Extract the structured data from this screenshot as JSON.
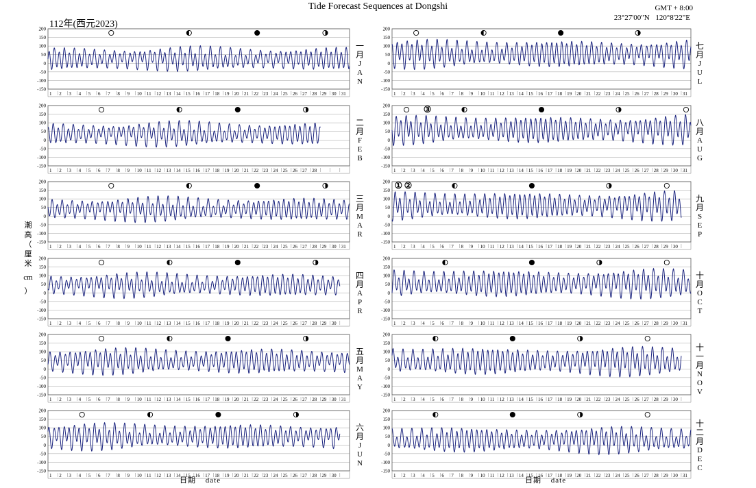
{
  "header": {
    "title": "Tide Forecast Sequences at Dongshi",
    "year_label": "112年(西元2023)",
    "gmt": "GMT + 8:00",
    "coords": "23°27'00\"N 120°8'22\"E"
  },
  "axis": {
    "ylabel_chars": [
      "潮",
      "高",
      "（",
      "厘",
      "米",
      "cm",
      "）"
    ],
    "xlabel": "日期 date"
  },
  "chart_data": {
    "type": "line",
    "y_unit": "cm",
    "ylim": [
      -150,
      200
    ],
    "yticks": [
      -150,
      -100,
      -50,
      0,
      50,
      100,
      150,
      200
    ],
    "grid": true,
    "x_unit": "day of month",
    "line_color": "#1a237e",
    "months": [
      {
        "label": "一月",
        "abbr": "JAN",
        "days": 31,
        "amp": [
          45,
          55
        ],
        "mean": 25,
        "phases": [
          {
            "type": "full",
            "day": 7
          },
          {
            "type": "last-quarter",
            "day": 15
          },
          {
            "type": "new",
            "day": 22
          },
          {
            "type": "first-quarter",
            "day": 29
          }
        ],
        "markers": []
      },
      {
        "label": "二月",
        "abbr": "FEB",
        "days": 28,
        "amp": [
          45,
          60
        ],
        "mean": 35,
        "phases": [
          {
            "type": "full",
            "day": 6
          },
          {
            "type": "last-quarter",
            "day": 14
          },
          {
            "type": "new",
            "day": 20
          },
          {
            "type": "first-quarter",
            "day": 27
          }
        ],
        "markers": []
      },
      {
        "label": "三月",
        "abbr": "MAR",
        "days": 31,
        "amp": [
          45,
          60
        ],
        "mean": 40,
        "phases": [
          {
            "type": "full",
            "day": 7
          },
          {
            "type": "last-quarter",
            "day": 15
          },
          {
            "type": "new",
            "day": 22
          },
          {
            "type": "first-quarter",
            "day": 29
          }
        ],
        "markers": []
      },
      {
        "label": "四月",
        "abbr": "APR",
        "days": 30,
        "amp": [
          45,
          60
        ],
        "mean": 45,
        "phases": [
          {
            "type": "full",
            "day": 6
          },
          {
            "type": "last-quarter",
            "day": 13
          },
          {
            "type": "new",
            "day": 20
          },
          {
            "type": "first-quarter",
            "day": 28
          }
        ],
        "markers": []
      },
      {
        "label": "五月",
        "abbr": "MAY",
        "days": 31,
        "amp": [
          50,
          60
        ],
        "mean": 45,
        "phases": [
          {
            "type": "full",
            "day": 6
          },
          {
            "type": "last-quarter",
            "day": 13
          },
          {
            "type": "new",
            "day": 19
          },
          {
            "type": "first-quarter",
            "day": 27
          }
        ],
        "markers": []
      },
      {
        "label": "六月",
        "abbr": "JUN",
        "days": 30,
        "amp": [
          50,
          65
        ],
        "mean": 50,
        "phases": [
          {
            "type": "full",
            "day": 4
          },
          {
            "type": "last-quarter",
            "day": 11
          },
          {
            "type": "new",
            "day": 18
          },
          {
            "type": "first-quarter",
            "day": 26
          }
        ],
        "markers": []
      },
      {
        "label": "七月",
        "abbr": "JUL",
        "days": 31,
        "amp": [
          55,
          70
        ],
        "mean": 55,
        "phases": [
          {
            "type": "full",
            "day": 3
          },
          {
            "type": "last-quarter",
            "day": 10
          },
          {
            "type": "new",
            "day": 18
          },
          {
            "type": "first-quarter",
            "day": 26
          }
        ],
        "markers": []
      },
      {
        "label": "八月",
        "abbr": "AUG",
        "days": 31,
        "amp": [
          55,
          70
        ],
        "mean": 60,
        "phases": [
          {
            "type": "full",
            "day": 2
          },
          {
            "type": "last-quarter",
            "day": 8
          },
          {
            "type": "new",
            "day": 16
          },
          {
            "type": "first-quarter",
            "day": 24
          },
          {
            "type": "full",
            "day": 31
          }
        ],
        "markers": [
          {
            "symbol": "③",
            "day": 4
          }
        ]
      },
      {
        "label": "九月",
        "abbr": "SEP",
        "days": 30,
        "amp": [
          55,
          70
        ],
        "mean": 60,
        "phases": [
          {
            "type": "last-quarter",
            "day": 7
          },
          {
            "type": "new",
            "day": 15
          },
          {
            "type": "first-quarter",
            "day": 23
          },
          {
            "type": "full",
            "day": 29
          }
        ],
        "markers": [
          {
            "symbol": "①",
            "day": 1
          },
          {
            "symbol": "②",
            "day": 2
          }
        ]
      },
      {
        "label": "十月",
        "abbr": "OCT",
        "days": 31,
        "amp": [
          55,
          70
        ],
        "mean": 55,
        "phases": [
          {
            "type": "last-quarter",
            "day": 6
          },
          {
            "type": "new",
            "day": 15
          },
          {
            "type": "first-quarter",
            "day": 22
          },
          {
            "type": "full",
            "day": 29
          }
        ],
        "markers": []
      },
      {
        "label": "十一月",
        "abbr": "NOV",
        "days": 30,
        "amp": [
          55,
          70
        ],
        "mean": 45,
        "phases": [
          {
            "type": "last-quarter",
            "day": 5
          },
          {
            "type": "new",
            "day": 13
          },
          {
            "type": "first-quarter",
            "day": 20
          },
          {
            "type": "full",
            "day": 27
          }
        ],
        "markers": []
      },
      {
        "label": "十二月",
        "abbr": "DEC",
        "days": 31,
        "amp": [
          50,
          65
        ],
        "mean": 30,
        "phases": [
          {
            "type": "last-quarter",
            "day": 5
          },
          {
            "type": "new",
            "day": 13
          },
          {
            "type": "first-quarter",
            "day": 20
          },
          {
            "type": "full",
            "day": 27
          }
        ],
        "markers": []
      }
    ]
  }
}
